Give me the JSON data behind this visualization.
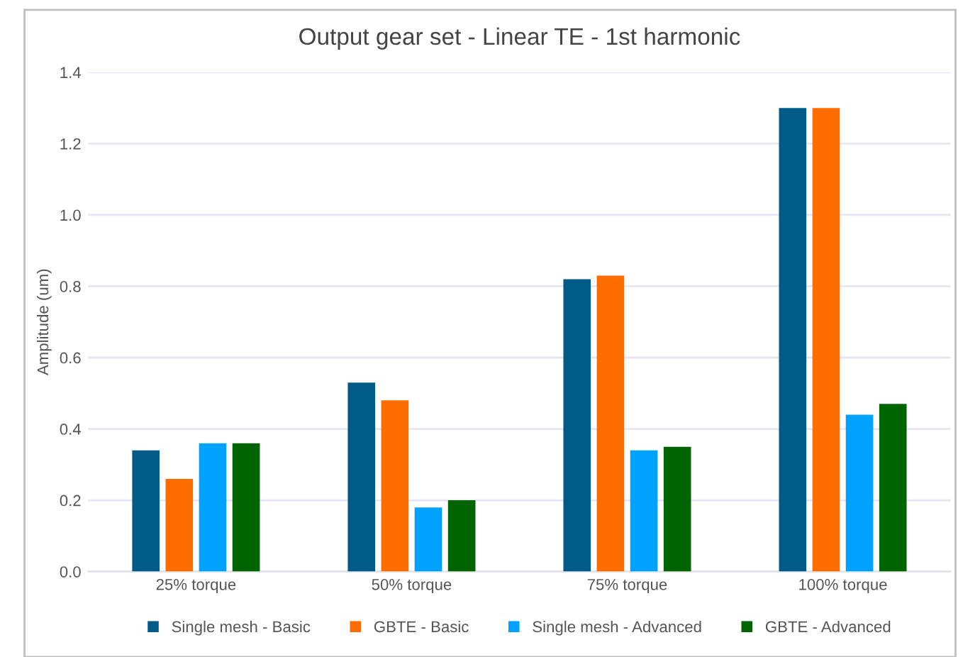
{
  "chart_data": {
    "type": "bar",
    "title": "Output gear set - Linear TE - 1st harmonic",
    "ylabel": "Amplitude (um)",
    "categories": [
      "25% torque",
      "50% torque",
      "75% torque",
      "100% torque"
    ],
    "series": [
      {
        "name": "Single mesh - Basic",
        "color": "#005b87",
        "values": [
          0.34,
          0.53,
          0.82,
          1.3
        ]
      },
      {
        "name": "GBTE - Basic",
        "color": "#ff6d00",
        "values": [
          0.26,
          0.48,
          0.83,
          1.3
        ]
      },
      {
        "name": "Single mesh - Advanced",
        "color": "#00a2ff",
        "values": [
          0.36,
          0.18,
          0.34,
          0.44
        ]
      },
      {
        "name": "GBTE - Advanced",
        "color": "#006400",
        "values": [
          0.36,
          0.2,
          0.35,
          0.47
        ]
      }
    ],
    "ylim": [
      0,
      1.4
    ],
    "yticks": [
      {
        "value": 0,
        "label": "0.0"
      },
      {
        "value": 0.2,
        "label": "0.2"
      },
      {
        "value": 0.4,
        "label": "0.4"
      },
      {
        "value": 0.6,
        "label": "0.6"
      },
      {
        "value": 0.8,
        "label": "0.8"
      },
      {
        "value": 1.0,
        "label": "1.0"
      },
      {
        "value": 1.2,
        "label": "1.2"
      },
      {
        "value": 1.4,
        "label": "1.4"
      }
    ],
    "grid": "y",
    "legend": "bottom"
  }
}
